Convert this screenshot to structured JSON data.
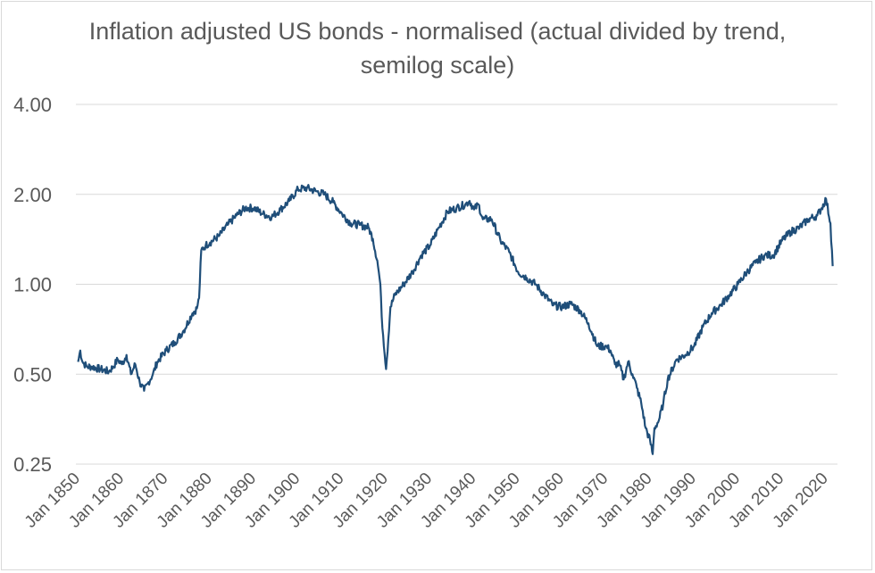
{
  "chart_data": {
    "type": "line",
    "title": "Inflation adjusted US bonds - normalised (actual divided by trend, semilog scale)",
    "xlabel": "",
    "ylabel": "",
    "y_scale": "log",
    "ylim": [
      0.25,
      4.0
    ],
    "y_ticks": [
      "4.00",
      "2.00",
      "1.00",
      "0.50",
      "0.25"
    ],
    "y_tick_values": [
      4.0,
      2.0,
      1.0,
      0.5,
      0.25
    ],
    "x_ticks": [
      "Jan 1850",
      "Jan 1860",
      "Jan 1870",
      "Jan 1880",
      "Jan 1890",
      "Jan 1900",
      "Jan 1910",
      "Jan 1920",
      "Jan 1930",
      "Jan 1940",
      "Jan 1950",
      "Jan 1960",
      "Jan 1970",
      "Jan 1980",
      "Jan 1990",
      "Jan 2000",
      "Jan 2010",
      "Jan 2020"
    ],
    "x_tick_years": [
      1850,
      1860,
      1870,
      1880,
      1890,
      1900,
      1910,
      1920,
      1930,
      1940,
      1950,
      1960,
      1970,
      1980,
      1990,
      2000,
      2010,
      2020
    ],
    "xlim": [
      1850,
      2022
    ],
    "grid": "horizontal",
    "line_color": "#1f4e79",
    "series": [
      {
        "x": [
          1850,
          1850.5,
          1851,
          1852,
          1853,
          1855,
          1857,
          1858,
          1859,
          1860,
          1861,
          1862,
          1863,
          1864,
          1865,
          1866,
          1867,
          1868,
          1870,
          1872,
          1874,
          1876,
          1877,
          1877.5,
          1878,
          1879,
          1880,
          1882,
          1884,
          1886,
          1888,
          1890,
          1892,
          1894,
          1896,
          1898,
          1900,
          1902,
          1904,
          1906,
          1908,
          1910,
          1912,
          1914,
          1916,
          1917,
          1918,
          1918.7,
          1919,
          1920,
          1921,
          1922,
          1924,
          1926,
          1928,
          1930,
          1932,
          1934,
          1936,
          1938,
          1939,
          1940,
          1941,
          1942,
          1944,
          1946,
          1948,
          1950,
          1952,
          1954,
          1956,
          1958,
          1960,
          1962,
          1964,
          1966,
          1968,
          1970,
          1971,
          1972,
          1973,
          1974,
          1975,
          1976,
          1977,
          1978,
          1979,
          1980,
          1980.6,
          1981,
          1982,
          1983,
          1984,
          1986,
          1988,
          1990,
          1992,
          1994,
          1996,
          1998,
          2000,
          2002,
          2004,
          2006,
          2008,
          2010,
          2012,
          2014,
          2016,
          2018,
          2019,
          2020,
          2021,
          2021.5
        ],
        "y": [
          0.55,
          0.6,
          0.55,
          0.53,
          0.53,
          0.52,
          0.51,
          0.53,
          0.56,
          0.54,
          0.58,
          0.5,
          0.54,
          0.47,
          0.44,
          0.47,
          0.5,
          0.55,
          0.6,
          0.64,
          0.7,
          0.8,
          0.83,
          0.9,
          1.3,
          1.35,
          1.38,
          1.45,
          1.58,
          1.7,
          1.8,
          1.8,
          1.72,
          1.68,
          1.78,
          1.9,
          2.08,
          2.1,
          2.05,
          2.0,
          1.88,
          1.72,
          1.6,
          1.58,
          1.55,
          1.42,
          1.2,
          1.0,
          0.78,
          0.52,
          0.84,
          0.92,
          1.0,
          1.1,
          1.25,
          1.35,
          1.55,
          1.75,
          1.8,
          1.85,
          1.9,
          1.78,
          1.85,
          1.65,
          1.65,
          1.4,
          1.28,
          1.1,
          1.05,
          1.0,
          0.92,
          0.85,
          0.84,
          0.86,
          0.82,
          0.74,
          0.62,
          0.62,
          0.6,
          0.54,
          0.54,
          0.48,
          0.55,
          0.5,
          0.45,
          0.4,
          0.33,
          0.3,
          0.27,
          0.33,
          0.35,
          0.4,
          0.48,
          0.56,
          0.58,
          0.62,
          0.72,
          0.8,
          0.85,
          0.92,
          1.0,
          1.1,
          1.18,
          1.25,
          1.25,
          1.4,
          1.5,
          1.55,
          1.65,
          1.7,
          1.8,
          1.93,
          1.6,
          1.15
        ]
      }
    ]
  }
}
